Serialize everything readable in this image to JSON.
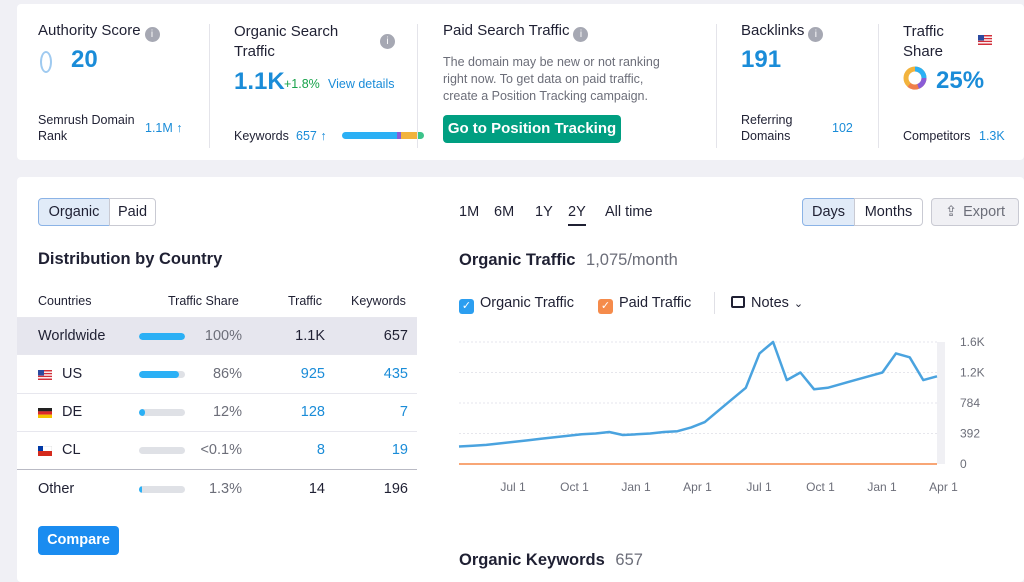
{
  "authority": {
    "label": "Authority Score",
    "value": "20",
    "rank_label_1": "Semrush Domain",
    "rank_label_2": "Rank",
    "rank_value": "1.1M ↑"
  },
  "organic": {
    "label_1": "Organic Search",
    "label_2": "Traffic",
    "value": "1.1K",
    "change": "+1.8%",
    "details_link": "View details",
    "keywords_label": "Keywords",
    "keywords_value": "657 ↑"
  },
  "paid": {
    "label": "Paid Search Traffic",
    "desc_1": "The domain may be new or not ranking",
    "desc_2": "right now. To get data on paid traffic,",
    "desc_3": "create a Position Tracking campaign.",
    "button": "Go to Position Tracking"
  },
  "backlinks": {
    "label": "Backlinks",
    "value": "191",
    "ref_label_1": "Referring",
    "ref_label_2": "Domains",
    "ref_value": "102"
  },
  "traffic_share": {
    "label_1": "Traffic",
    "label_2": "Share",
    "value": "25%",
    "competitors_label": "Competitors",
    "competitors_value": "1.3K"
  },
  "tabs": {
    "organic": "Organic",
    "paid": "Paid"
  },
  "distribution": {
    "title": "Distribution by Country",
    "headers": {
      "countries": "Countries",
      "share": "Traffic Share",
      "traffic": "Traffic",
      "keywords": "Keywords"
    },
    "rows": [
      {
        "name": "Worldwide",
        "share_pct": "100%",
        "share": 1.0,
        "traffic": "1.1K",
        "keywords": "657"
      },
      {
        "name": "US",
        "share_pct": "86%",
        "share": 0.86,
        "traffic": "925",
        "keywords": "435"
      },
      {
        "name": "DE",
        "share_pct": "12%",
        "share": 0.12,
        "traffic": "128",
        "keywords": "7"
      },
      {
        "name": "CL",
        "share_pct": "<0.1%",
        "share": 0.0,
        "traffic": "8",
        "keywords": "19"
      },
      {
        "name": "Other",
        "share_pct": "1.3%",
        "share": 0.013,
        "traffic": "14",
        "keywords": "196"
      }
    ],
    "compare_button": "Compare"
  },
  "periods": [
    "1M",
    "6M",
    "1Y",
    "2Y",
    "All time"
  ],
  "active_period": "2Y",
  "granularity": {
    "days": "Days",
    "months": "Months",
    "export": "Export"
  },
  "organic_traffic": {
    "title": "Organic Traffic",
    "subtitle": "1,075/month"
  },
  "legend": {
    "organic": "Organic Traffic",
    "paid": "Paid Traffic",
    "notes": "Notes"
  },
  "organic_keywords": {
    "title": "Organic Keywords",
    "value": "657"
  },
  "colors": {
    "accent": "#1a8cd8",
    "organic": "#4aa3df",
    "paid": "#f89b5c",
    "green_btn": "#009f81",
    "bar": "#2bb0f5"
  },
  "chart_data": {
    "type": "line",
    "x_ticks": [
      "Jul 1",
      "Oct 1",
      "Jan 1",
      "Apr 1",
      "Jul 1",
      "Oct 1",
      "Jan 1",
      "Apr 1"
    ],
    "y_ticks": [
      "1.6K",
      "1.2K",
      "784",
      "392",
      "0"
    ],
    "ylim": [
      0,
      1600
    ],
    "series": [
      {
        "name": "Organic Traffic",
        "values": [
          230,
          240,
          250,
          270,
          290,
          310,
          330,
          350,
          370,
          390,
          400,
          420,
          380,
          390,
          400,
          420,
          430,
          480,
          550,
          700,
          850,
          1000,
          1450,
          1600,
          1100,
          1200,
          980,
          1000,
          1050,
          1100,
          1150,
          1200,
          1450,
          1400,
          1100,
          1150
        ]
      },
      {
        "name": "Paid Traffic",
        "values": [
          0,
          0,
          0,
          0,
          0,
          0,
          0,
          0,
          0,
          0,
          0,
          0,
          0,
          0,
          0,
          0,
          0,
          0,
          0,
          0,
          0,
          0,
          0,
          0,
          0,
          0,
          0,
          0,
          0,
          0,
          0,
          0,
          0,
          0,
          0,
          0
        ]
      }
    ]
  }
}
